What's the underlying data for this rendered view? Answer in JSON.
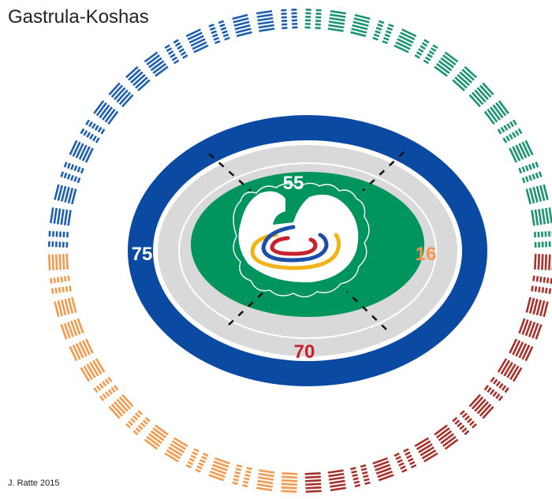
{
  "title": "Gastrula-Koshas",
  "credit": "J. Ratte 2015",
  "labels": {
    "top": "55",
    "left": "75",
    "right": "16",
    "bottom": "70"
  },
  "colors": {
    "outer_ring": "#0b4aa2",
    "inner_gray": "#d9d9d9",
    "green": "#00945e",
    "label_top": "#ffffff",
    "label_left": "#ffffff",
    "label_right": "#f7954f",
    "label_bottom": "#c8202c",
    "hex_blue": "#1f5fb0",
    "hex_green": "#1a9470",
    "hex_red": "#a8322a",
    "hex_orange": "#f39a4f",
    "arc_blue": "#1c4fa8",
    "arc_red": "#c8202c",
    "arc_yellow": "#f2b316"
  },
  "ring": {
    "count": 64,
    "groups": [
      "blue",
      "green",
      "red",
      "orange"
    ]
  }
}
